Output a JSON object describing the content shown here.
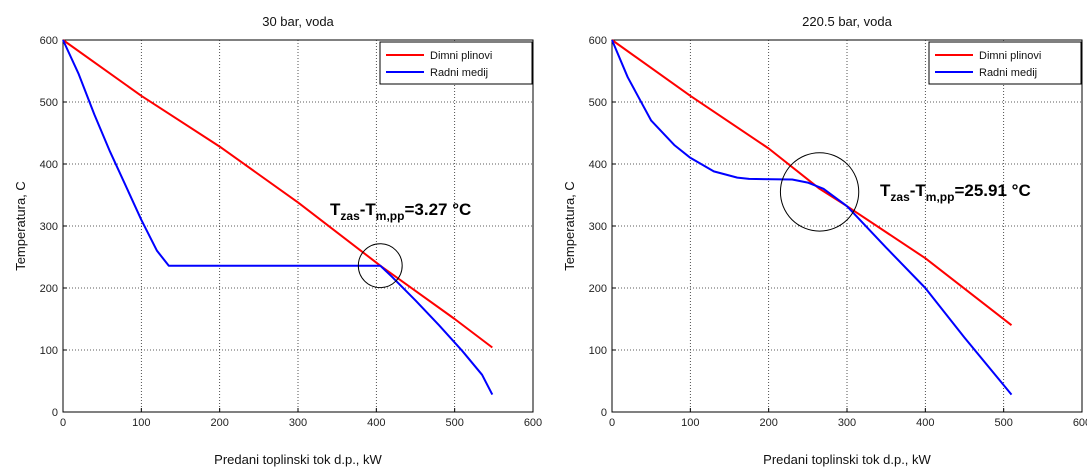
{
  "chart_data": [
    {
      "type": "line",
      "title": "30 bar, voda",
      "xlabel": "Predani toplinski tok d.p., kW",
      "ylabel": "Temperatura, C",
      "xlim": [
        0,
        600
      ],
      "ylim": [
        0,
        600
      ],
      "xticks": [
        "0",
        "100",
        "200",
        "300",
        "400",
        "500",
        "600"
      ],
      "yticks": [
        "0",
        "100",
        "200",
        "300",
        "400",
        "500",
        "600"
      ],
      "grid": true,
      "legend_position": "top-right",
      "series": [
        {
          "name": "Dimni plinovi",
          "color": "#ff0000",
          "x": [
            0,
            100,
            200,
            300,
            405,
            500,
            548
          ],
          "y": [
            600,
            510,
            428,
            338,
            236,
            150,
            104
          ]
        },
        {
          "name": "Radni medij",
          "color": "#0000ff",
          "x": [
            0,
            20,
            40,
            60,
            80,
            100,
            120,
            135,
            405,
            420,
            450,
            480,
            510,
            535,
            548
          ],
          "y": [
            600,
            545,
            480,
            420,
            365,
            310,
            260,
            236,
            236,
            218,
            180,
            140,
            98,
            60,
            28
          ]
        }
      ],
      "annotation": {
        "parts": [
          "T",
          "zas",
          "-T",
          "m,pp",
          "=3.27 °C"
        ],
        "circle_center": [
          405,
          236
        ],
        "circle_radius_data_x": 28
      }
    },
    {
      "type": "line",
      "title": "220.5 bar, voda",
      "xlabel": "Predani toplinski tok d.p., kW",
      "ylabel": "Temperatura, C",
      "xlim": [
        0,
        600
      ],
      "ylim": [
        0,
        600
      ],
      "xticks": [
        "0",
        "100",
        "200",
        "300",
        "400",
        "500",
        "600"
      ],
      "yticks": [
        "0",
        "100",
        "200",
        "300",
        "400",
        "500",
        "600"
      ],
      "grid": true,
      "legend_position": "top-right",
      "series": [
        {
          "name": "Dimni plinovi",
          "color": "#ff0000",
          "x": [
            0,
            100,
            200,
            265,
            300,
            400,
            510
          ],
          "y": [
            600,
            510,
            425,
            360,
            332,
            248,
            140
          ]
        },
        {
          "name": "Radni medij",
          "color": "#0000ff",
          "x": [
            0,
            20,
            50,
            80,
            100,
            130,
            160,
            175,
            230,
            250,
            270,
            300,
            350,
            400,
            450,
            510
          ],
          "y": [
            600,
            540,
            470,
            430,
            410,
            388,
            378,
            376,
            375,
            370,
            360,
            332,
            265,
            200,
            120,
            28
          ]
        }
      ],
      "annotation": {
        "parts": [
          "T",
          "zas",
          "-T",
          "m,pp",
          "=25.91 °C"
        ],
        "circle_center": [
          265,
          355
        ],
        "circle_radius_data_x": 50
      }
    }
  ]
}
